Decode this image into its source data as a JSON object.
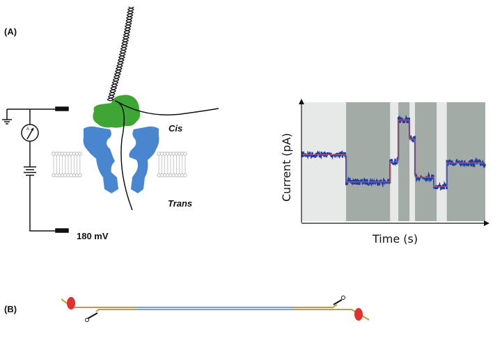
{
  "panel_a": {
    "label": "(A)",
    "cis_label": "Cis",
    "trans_label": "Trans",
    "voltage_label": "180 mV",
    "ammeter_symbol": "A",
    "colors": {
      "helicase": "#3fa535",
      "pore": "#4a86cf",
      "membrane": "#c8c8c8"
    }
  },
  "panel_b": {
    "label": "(B)",
    "colors": {
      "adapter": "#c89a2c",
      "dsdna": "#6aa3e0",
      "blocker": "#e03030"
    }
  },
  "chart_data": {
    "type": "line",
    "xlabel": "Time (s)",
    "ylabel": "Current (pA)",
    "grid": false,
    "steps": [
      {
        "t_start": 0,
        "t_end": 24,
        "level": 56
      },
      {
        "t_start": 24,
        "t_end": 48,
        "level": 33
      },
      {
        "t_start": 48,
        "t_end": 52.5,
        "level": 50
      },
      {
        "t_start": 52.5,
        "t_end": 58.6,
        "level": 85
      },
      {
        "t_start": 58.6,
        "t_end": 61.6,
        "level": 69
      },
      {
        "t_start": 61.6,
        "t_end": 72,
        "level": 37
      },
      {
        "t_start": 72,
        "t_end": 79,
        "level": 29
      },
      {
        "t_start": 79,
        "t_end": 100,
        "level": 49
      }
    ],
    "shaded_intervals": [
      [
        24,
        48
      ],
      [
        52.5,
        58.6
      ],
      [
        61.6,
        73.4
      ],
      [
        79,
        100
      ]
    ],
    "xlim": [
      0,
      100
    ],
    "ylim": [
      0,
      100
    ],
    "colors": {
      "trace": "#1f3fa8",
      "fit": "#e05a5a",
      "shade": "#a3aba7",
      "background": "#e6e9e8"
    }
  }
}
